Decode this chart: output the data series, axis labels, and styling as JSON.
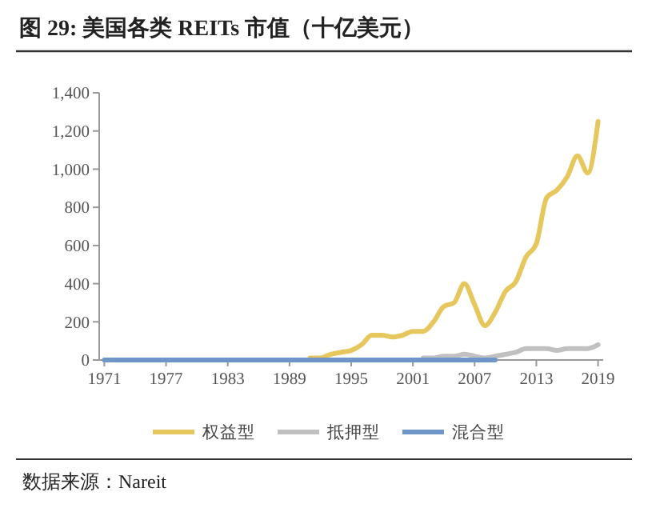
{
  "chart_data": {
    "type": "line",
    "title": "图 29: 美国各类 REITs 市值（十亿美元）",
    "annotations": [
      "数据来源：Nareit"
    ],
    "x": [
      1971,
      1972,
      1973,
      1974,
      1975,
      1976,
      1977,
      1978,
      1979,
      1980,
      1981,
      1982,
      1983,
      1984,
      1985,
      1986,
      1987,
      1988,
      1989,
      1990,
      1991,
      1992,
      1993,
      1994,
      1995,
      1996,
      1997,
      1998,
      1999,
      2000,
      2001,
      2002,
      2003,
      2004,
      2005,
      2006,
      2007,
      2008,
      2009,
      2010,
      2011,
      2012,
      2013,
      2014,
      2015,
      2016,
      2017,
      2018,
      2019
    ],
    "xlim": [
      1970.5,
      2019.5
    ],
    "xticks": [
      1971,
      1977,
      1983,
      1989,
      1995,
      2001,
      2007,
      2013,
      2019
    ],
    "ylim": [
      0,
      1400
    ],
    "yticks": [
      0,
      {
        "value": 200,
        "label": "200"
      },
      {
        "value": 400,
        "label": "400"
      },
      {
        "value": 600,
        "label": "600"
      },
      {
        "value": 800,
        "label": "800"
      },
      {
        "value": 1000,
        "label": "1,000"
      },
      {
        "value": 1200,
        "label": "1,200"
      },
      {
        "value": 1400,
        "label": "1,400"
      }
    ],
    "series": [
      {
        "name": "权益型",
        "color": "#e6c75e",
        "values": [
          null,
          null,
          null,
          null,
          null,
          null,
          null,
          null,
          null,
          null,
          null,
          null,
          null,
          null,
          null,
          null,
          null,
          null,
          null,
          null,
          10,
          10,
          30,
          40,
          50,
          80,
          130,
          130,
          120,
          130,
          150,
          150,
          200,
          280,
          300,
          400,
          290,
          180,
          250,
          360,
          410,
          540,
          610,
          850,
          890,
          960,
          1070,
          980,
          1250
        ]
      },
      {
        "name": "抵押型",
        "color": "#c0c0c0",
        "values": [
          null,
          null,
          null,
          null,
          null,
          null,
          null,
          null,
          null,
          null,
          null,
          null,
          null,
          null,
          null,
          null,
          null,
          null,
          null,
          null,
          null,
          null,
          null,
          null,
          null,
          null,
          null,
          null,
          null,
          null,
          null,
          10,
          10,
          20,
          20,
          30,
          20,
          10,
          20,
          30,
          40,
          60,
          60,
          60,
          50,
          60,
          60,
          60,
          80
        ]
      },
      {
        "name": "混合型",
        "color": "#6e95c8",
        "values": [
          0,
          0,
          0,
          0,
          0,
          0,
          0,
          0,
          0,
          0,
          0,
          0,
          0,
          0,
          0,
          0,
          0,
          0,
          0,
          0,
          0,
          0,
          0,
          0,
          0,
          0,
          0,
          0,
          0,
          0,
          0,
          0,
          0,
          0,
          0,
          0,
          0,
          0,
          0,
          null,
          null,
          null,
          null,
          null,
          null,
          null,
          null,
          null,
          null
        ]
      }
    ],
    "legend": "bottom",
    "grid": false,
    "marker": "none",
    "line_style": "solid"
  }
}
